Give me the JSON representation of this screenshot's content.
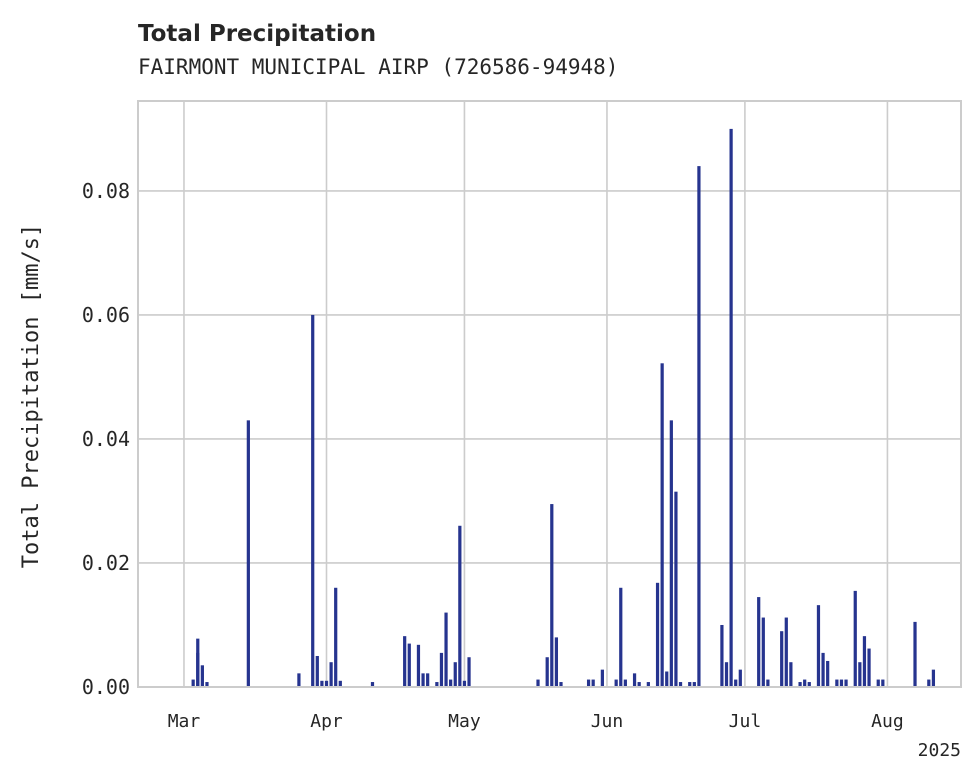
{
  "chart_data": {
    "type": "bar",
    "title": "Total Precipitation",
    "subtitle": "FAIRMONT MUNICIPAL AIRP (726586-94948)",
    "xlabel": "",
    "ylabel": "Total Precipitation [mm/s]",
    "xlim": [
      "2025-02-19",
      "2025-08-17"
    ],
    "ylim": [
      0,
      0.0945
    ],
    "grid": true,
    "legend": "none",
    "x_ticks": [
      {
        "date": "2025-03-01",
        "label": "Mar"
      },
      {
        "date": "2025-04-01",
        "label": "Apr"
      },
      {
        "date": "2025-05-01",
        "label": "May"
      },
      {
        "date": "2025-06-01",
        "label": "Jun"
      },
      {
        "date": "2025-07-01",
        "label": "Jul"
      },
      {
        "date": "2025-08-01",
        "label": "Aug"
      }
    ],
    "x_offset_label": "2025",
    "y_ticks": [
      {
        "value": 0.0,
        "label": "0.00"
      },
      {
        "value": 0.02,
        "label": "0.02"
      },
      {
        "value": 0.04,
        "label": "0.04"
      },
      {
        "value": 0.06,
        "label": "0.06"
      },
      {
        "value": 0.08,
        "label": "0.08"
      }
    ],
    "color": "#26348f",
    "series": [
      {
        "x": [
          "2025-03-03",
          "2025-03-04",
          "2025-03-04",
          "2025-03-05",
          "2025-03-06",
          "2025-03-15",
          "2025-03-26",
          "2025-03-29",
          "2025-03-30",
          "2025-03-31",
          "2025-04-01",
          "2025-04-02",
          "2025-04-03",
          "2025-04-04",
          "2025-04-11",
          "2025-04-18",
          "2025-04-19",
          "2025-04-21",
          "2025-04-22",
          "2025-04-23",
          "2025-04-25",
          "2025-04-26",
          "2025-04-27",
          "2025-04-28",
          "2025-04-29",
          "2025-04-30",
          "2025-05-01",
          "2025-05-02",
          "2025-05-17",
          "2025-05-19",
          "2025-05-20",
          "2025-05-21",
          "2025-05-22",
          "2025-05-28",
          "2025-05-29",
          "2025-05-31",
          "2025-06-03",
          "2025-06-04",
          "2025-06-05",
          "2025-06-07",
          "2025-06-08",
          "2025-06-10",
          "2025-06-12",
          "2025-06-13",
          "2025-06-14",
          "2025-06-15",
          "2025-06-16",
          "2025-06-17",
          "2025-06-19",
          "2025-06-20",
          "2025-06-21",
          "2025-06-26",
          "2025-06-27",
          "2025-06-28",
          "2025-06-29",
          "2025-06-30",
          "2025-07-04",
          "2025-07-05",
          "2025-07-06",
          "2025-07-09",
          "2025-07-10",
          "2025-07-11",
          "2025-07-13",
          "2025-07-14",
          "2025-07-15",
          "2025-07-17",
          "2025-07-18",
          "2025-07-19",
          "2025-07-21",
          "2025-07-22",
          "2025-07-23",
          "2025-07-25",
          "2025-07-26",
          "2025-07-27",
          "2025-07-28",
          "2025-07-30",
          "2025-07-31",
          "2025-08-07",
          "2025-08-10",
          "2025-08-11"
        ],
        "values": [
          0.0012,
          0.0078,
          0.0055,
          0.0035,
          0.0008,
          0.043,
          0.0022,
          0.06,
          0.005,
          0.001,
          0.001,
          0.004,
          0.016,
          0.001,
          0.0008,
          0.0082,
          0.007,
          0.0068,
          0.0022,
          0.0022,
          0.0008,
          0.0055,
          0.012,
          0.0012,
          0.004,
          0.026,
          0.001,
          0.0048,
          0.0012,
          0.0048,
          0.0295,
          0.008,
          0.0008,
          0.0012,
          0.0012,
          0.0028,
          0.0012,
          0.016,
          0.0012,
          0.0022,
          0.0008,
          0.0008,
          0.0168,
          0.0522,
          0.0025,
          0.043,
          0.0315,
          0.0008,
          0.0008,
          0.0008,
          0.084,
          0.01,
          0.004,
          0.09,
          0.0012,
          0.0028,
          0.0145,
          0.0112,
          0.0012,
          0.009,
          0.0112,
          0.004,
          0.0008,
          0.0012,
          0.0008,
          0.0132,
          0.0055,
          0.0042,
          0.0012,
          0.0012,
          0.0012,
          0.0155,
          0.004,
          0.0082,
          0.0062,
          0.0012,
          0.0012,
          0.0105,
          0.0012,
          0.0028
        ]
      }
    ]
  }
}
